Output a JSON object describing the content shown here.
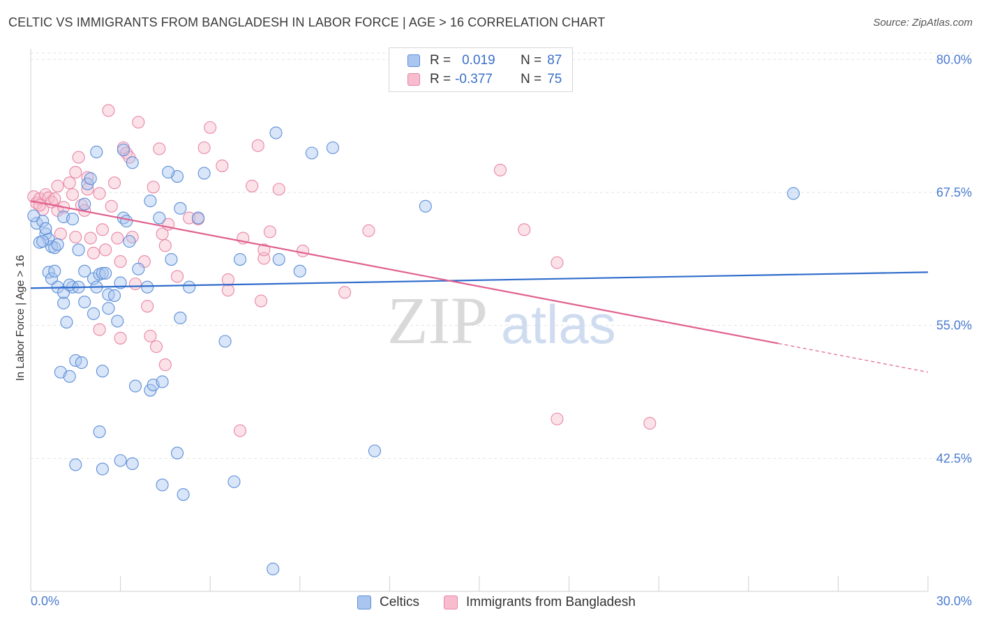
{
  "header": {
    "title": "CELTIC VS IMMIGRANTS FROM BANGLADESH IN LABOR FORCE | AGE > 16 CORRELATION CHART",
    "source": "Source: ZipAtlas.com"
  },
  "legend": {
    "rows": [
      {
        "r_label": "R =",
        "r_value": "0.019",
        "n_label": "N =",
        "n_value": "87"
      },
      {
        "r_label": "R =",
        "r_value": "-0.377",
        "n_label": "N =",
        "n_value": "75"
      }
    ]
  },
  "watermark": {
    "zip": "ZIP",
    "atlas": "atlas"
  },
  "colors": {
    "celtic_fill": "#aac6f0",
    "celtic_stroke": "#5b8fd8",
    "celtic_line": "#2f6ccc",
    "bangla_fill": "#f7bccd",
    "bangla_stroke": "#e886a6",
    "bangla_line": "#e0608f",
    "tick_text": "#4a7bd0",
    "grid": "#e3e3e3"
  },
  "chart_data": {
    "type": "scatter",
    "title": "CELTIC VS IMMIGRANTS FROM BANGLADESH IN LABOR FORCE | AGE > 16 CORRELATION CHART",
    "xlabel": "",
    "ylabel": "In Labor Force | Age > 16",
    "xlim": [
      0,
      30
    ],
    "ylim": [
      30,
      81
    ],
    "x_tick_labels": [
      "0.0%",
      "30.0%"
    ],
    "y_ticks": [
      42.5,
      55.0,
      67.5,
      80.0
    ],
    "y_tick_labels": [
      "42.5%",
      "55.0%",
      "67.5%",
      "80.0%"
    ],
    "grid": true,
    "legend_position": "top-center",
    "series": [
      {
        "name": "Celtics",
        "r": 0.019,
        "n": 87,
        "trend": {
          "x0": 0.0,
          "y0": 58.5,
          "x1": 30.0,
          "y1": 60.0
        },
        "points": [
          [
            0.2,
            64.6
          ],
          [
            0.4,
            64.8
          ],
          [
            0.5,
            63.6
          ],
          [
            0.6,
            63.1
          ],
          [
            0.7,
            62.4
          ],
          [
            0.3,
            62.8
          ],
          [
            0.8,
            62.3
          ],
          [
            0.9,
            62.6
          ],
          [
            0.6,
            60.0
          ],
          [
            0.7,
            59.4
          ],
          [
            0.8,
            60.1
          ],
          [
            0.9,
            58.6
          ],
          [
            1.1,
            57.1
          ],
          [
            1.2,
            55.3
          ],
          [
            1.1,
            58.1
          ],
          [
            1.4,
            58.6
          ],
          [
            1.3,
            58.8
          ],
          [
            1.6,
            62.1
          ],
          [
            1.6,
            58.6
          ],
          [
            1.8,
            57.2
          ],
          [
            1.8,
            60.1
          ],
          [
            2.1,
            59.4
          ],
          [
            2.2,
            58.6
          ],
          [
            2.1,
            56.1
          ],
          [
            2.3,
            59.8
          ],
          [
            2.4,
            59.9
          ],
          [
            2.5,
            59.9
          ],
          [
            2.6,
            56.6
          ],
          [
            2.6,
            57.9
          ],
          [
            2.8,
            57.8
          ],
          [
            2.9,
            55.4
          ],
          [
            3.0,
            59.0
          ],
          [
            3.1,
            65.1
          ],
          [
            3.2,
            64.8
          ],
          [
            3.3,
            62.9
          ],
          [
            3.6,
            60.3
          ],
          [
            3.9,
            58.6
          ],
          [
            4.0,
            66.7
          ],
          [
            4.3,
            65.1
          ],
          [
            4.7,
            61.2
          ],
          [
            4.9,
            69.0
          ],
          [
            5.0,
            66.0
          ],
          [
            5.3,
            58.6
          ],
          [
            5.0,
            55.7
          ],
          [
            5.6,
            65.1
          ],
          [
            6.5,
            53.5
          ],
          [
            7.0,
            61.2
          ],
          [
            8.3,
            61.2
          ],
          [
            9.0,
            60.1
          ],
          [
            8.2,
            73.1
          ],
          [
            9.4,
            71.2
          ],
          [
            10.1,
            71.7
          ],
          [
            13.2,
            66.2
          ],
          [
            1.5,
            51.7
          ],
          [
            1.0,
            50.6
          ],
          [
            1.3,
            50.2
          ],
          [
            1.7,
            51.5
          ],
          [
            2.4,
            50.7
          ],
          [
            3.5,
            49.3
          ],
          [
            4.0,
            48.9
          ],
          [
            4.1,
            49.4
          ],
          [
            4.4,
            49.7
          ],
          [
            2.3,
            45.0
          ],
          [
            1.5,
            41.9
          ],
          [
            2.4,
            41.5
          ],
          [
            3.0,
            42.3
          ],
          [
            3.4,
            42.0
          ],
          [
            4.4,
            40.0
          ],
          [
            4.9,
            43.0
          ],
          [
            5.1,
            39.1
          ],
          [
            6.8,
            40.3
          ],
          [
            11.5,
            43.2
          ],
          [
            8.1,
            32.1
          ],
          [
            0.1,
            65.3
          ],
          [
            0.5,
            64.1
          ],
          [
            1.1,
            65.2
          ],
          [
            1.4,
            65.0
          ],
          [
            1.8,
            66.4
          ],
          [
            1.9,
            68.3
          ],
          [
            2.0,
            68.8
          ],
          [
            2.2,
            71.3
          ],
          [
            3.4,
            70.3
          ],
          [
            3.1,
            71.5
          ],
          [
            4.6,
            69.4
          ],
          [
            5.8,
            69.3
          ],
          [
            0.4,
            62.9
          ],
          [
            25.5,
            67.4
          ]
        ]
      },
      {
        "name": "Immigrants from Bangladesh",
        "r": -0.377,
        "n": 75,
        "trend": {
          "x0": 0.0,
          "y0": 66.7,
          "x1": 25.0,
          "y1": 53.3,
          "dash_x1": 30.0,
          "dash_y1": 50.6
        },
        "points": [
          [
            0.1,
            67.1
          ],
          [
            0.2,
            66.5
          ],
          [
            0.3,
            66.9
          ],
          [
            0.4,
            65.9
          ],
          [
            0.5,
            67.3
          ],
          [
            0.6,
            67.0
          ],
          [
            0.7,
            66.6
          ],
          [
            0.3,
            66.3
          ],
          [
            0.8,
            66.9
          ],
          [
            0.9,
            65.8
          ],
          [
            1.0,
            63.6
          ],
          [
            1.1,
            66.1
          ],
          [
            1.3,
            68.4
          ],
          [
            1.4,
            67.3
          ],
          [
            1.5,
            69.4
          ],
          [
            1.6,
            70.8
          ],
          [
            1.7,
            66.3
          ],
          [
            1.8,
            65.8
          ],
          [
            1.9,
            68.9
          ],
          [
            2.0,
            63.2
          ],
          [
            2.1,
            61.8
          ],
          [
            2.3,
            67.4
          ],
          [
            2.4,
            64.0
          ],
          [
            2.5,
            62.1
          ],
          [
            2.6,
            75.2
          ],
          [
            2.7,
            66.2
          ],
          [
            2.8,
            68.4
          ],
          [
            2.9,
            63.2
          ],
          [
            3.0,
            61.0
          ],
          [
            3.1,
            71.7
          ],
          [
            3.2,
            71.2
          ],
          [
            3.3,
            70.8
          ],
          [
            3.4,
            63.3
          ],
          [
            3.6,
            74.1
          ],
          [
            3.5,
            58.9
          ],
          [
            3.8,
            61.0
          ],
          [
            3.9,
            56.8
          ],
          [
            4.0,
            54.0
          ],
          [
            4.1,
            68.0
          ],
          [
            4.3,
            71.6
          ],
          [
            4.4,
            63.6
          ],
          [
            4.5,
            62.5
          ],
          [
            4.6,
            64.5
          ],
          [
            4.9,
            59.6
          ],
          [
            5.3,
            65.1
          ],
          [
            5.6,
            65.0
          ],
          [
            5.8,
            71.7
          ],
          [
            6.0,
            73.6
          ],
          [
            6.4,
            70.0
          ],
          [
            6.6,
            58.3
          ],
          [
            6.6,
            59.3
          ],
          [
            7.1,
            63.2
          ],
          [
            7.4,
            68.1
          ],
          [
            7.6,
            71.9
          ],
          [
            7.7,
            57.3
          ],
          [
            7.8,
            61.3
          ],
          [
            7.8,
            62.1
          ],
          [
            8.0,
            63.8
          ],
          [
            8.3,
            67.8
          ],
          [
            9.1,
            62.0
          ],
          [
            10.5,
            58.1
          ],
          [
            11.3,
            63.9
          ],
          [
            15.7,
            69.6
          ],
          [
            16.5,
            64.0
          ],
          [
            17.6,
            60.9
          ],
          [
            3.0,
            53.8
          ],
          [
            4.2,
            53.0
          ],
          [
            4.5,
            51.3
          ],
          [
            7.0,
            45.1
          ],
          [
            17.6,
            46.2
          ],
          [
            20.7,
            45.8
          ],
          [
            0.9,
            68.1
          ],
          [
            1.5,
            63.3
          ],
          [
            2.3,
            54.6
          ],
          [
            1.9,
            67.8
          ]
        ]
      }
    ]
  }
}
